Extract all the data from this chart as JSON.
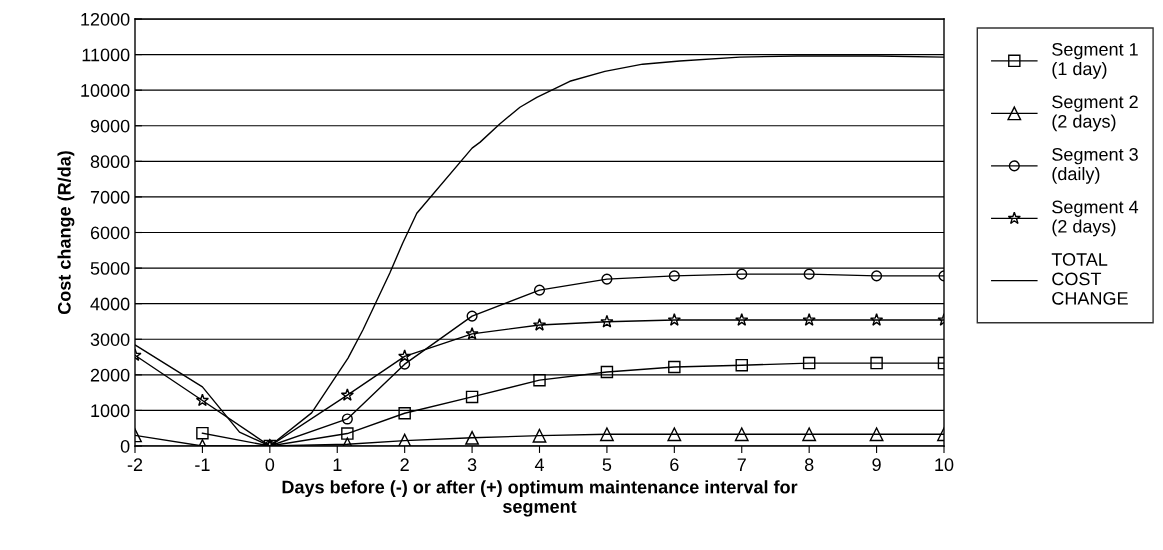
{
  "chart_data": {
    "type": "line",
    "xlabel": "Days before (-) or after (+) optimum maintenance interval for\nsegment",
    "ylabel": "Cost change (R/da)",
    "xlim": [
      -2,
      10
    ],
    "xticks": [
      -2,
      -1,
      0,
      1,
      2,
      3,
      4,
      5,
      6,
      7,
      8,
      9,
      10
    ],
    "ylim": [
      0,
      12000
    ],
    "yticks": [
      0,
      1000,
      2000,
      3000,
      4000,
      5000,
      6000,
      7000,
      8000,
      9000,
      10000,
      11000,
      12000
    ],
    "grid": "y",
    "legend": "right",
    "line_style": "solid",
    "series": [
      {
        "name": "Segment 1\n(1 day)",
        "color": "#000000",
        "marker": "square",
        "x": [
          -1,
          0,
          1.15,
          2,
          3,
          4,
          5,
          6,
          7,
          8,
          9,
          10
        ],
        "values": [
          360,
          0,
          350,
          920,
          1380,
          1850,
          2080,
          2220,
          2270,
          2330,
          2330,
          2330
        ]
      },
      {
        "name": "Segment 2\n(2 days)",
        "color": "#000000",
        "marker": "triangle",
        "x": [
          -2,
          -1,
          0,
          1.15,
          2,
          3,
          4,
          5,
          6,
          7,
          8,
          9,
          10
        ],
        "values": [
          300,
          0,
          0,
          50,
          150,
          230,
          290,
          330,
          330,
          330,
          330,
          330,
          330
        ]
      },
      {
        "name": "Segment 3\n(daily)",
        "color": "#000000",
        "marker": "circle",
        "x": [
          0,
          1.15,
          2,
          3,
          4,
          5,
          6,
          7,
          8,
          9,
          10
        ],
        "values": [
          0,
          760,
          2300,
          3650,
          4380,
          4690,
          4780,
          4830,
          4830,
          4780,
          4780
        ]
      },
      {
        "name": "Segment 4\n(2 days)",
        "color": "#000000",
        "marker": "star",
        "x": [
          -2,
          -1,
          0,
          1.15,
          2,
          3,
          4,
          5,
          6,
          7,
          8,
          9,
          10
        ],
        "values": [
          2550,
          1280,
          0,
          1430,
          2520,
          3150,
          3400,
          3490,
          3540,
          3540,
          3540,
          3540,
          3540
        ]
      },
      {
        "name": "TOTAL\nCOST\nCHANGE",
        "color": "#000000",
        "marker": "none",
        "x": [
          -2,
          -1,
          -0.45,
          0,
          0.62,
          1.16,
          1.38,
          1.78,
          1.97,
          2.18,
          3,
          3.12,
          3.41,
          3.71,
          3.96,
          4.45,
          4.97,
          5.53,
          6.08,
          6.97,
          7.82,
          9,
          10
        ],
        "values": [
          2840,
          1660,
          390,
          0,
          930,
          2470,
          3260,
          4860,
          5700,
          6540,
          8370,
          8540,
          9050,
          9520,
          9800,
          10250,
          10530,
          10730,
          10820,
          10930,
          10960,
          10960,
          10930
        ]
      }
    ]
  }
}
